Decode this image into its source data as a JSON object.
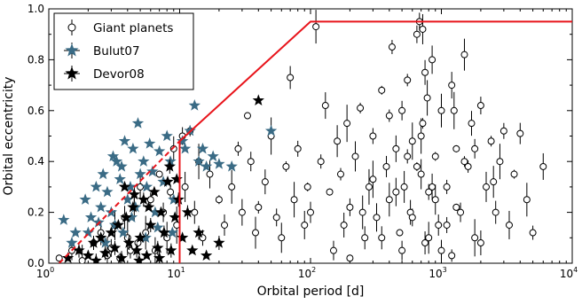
{
  "chart_data": {
    "type": "scatter",
    "title": "",
    "xlabel": "Orbital period [d]",
    "ylabel": "Orbital eccentricity",
    "xscale": "log",
    "xlim": [
      1,
      10000
    ],
    "ylim": [
      0,
      1.0
    ],
    "x_ticks": [
      {
        "value": 1,
        "base": "10",
        "exp": "0"
      },
      {
        "value": 10,
        "base": "10",
        "exp": "1"
      },
      {
        "value": 100,
        "base": "10",
        "exp": "2"
      },
      {
        "value": 1000,
        "base": "10",
        "exp": "3"
      },
      {
        "value": 10000,
        "base": "10",
        "exp": "4"
      }
    ],
    "y_ticks": [
      "0.0",
      "0.2",
      "0.4",
      "0.6",
      "0.8",
      "1.0"
    ],
    "legend_position": "top-left",
    "series": [
      {
        "name": "Giant planets",
        "marker": "open-circle",
        "color": "#000000",
        "points": [
          [
            1.2,
            0.02
          ],
          [
            1.5,
            0.05
          ],
          [
            1.8,
            0.01
          ],
          [
            2.2,
            0.08
          ],
          [
            2.5,
            0.12
          ],
          [
            2.8,
            0.03
          ],
          [
            3.0,
            0.06
          ],
          [
            3.2,
            0.15
          ],
          [
            3.5,
            0.02
          ],
          [
            3.8,
            0.18
          ],
          [
            4.0,
            0.1
          ],
          [
            4.2,
            0.05
          ],
          [
            4.5,
            0.22
          ],
          [
            4.8,
            0.08
          ],
          [
            5.0,
            0.3
          ],
          [
            5.5,
            0.12
          ],
          [
            6.0,
            0.25
          ],
          [
            6.5,
            0.05
          ],
          [
            7.0,
            0.35
          ],
          [
            7.5,
            0.2
          ],
          [
            8.0,
            0.1
          ],
          [
            8.5,
            0.28
          ],
          [
            9.0,
            0.45
          ],
          [
            9.5,
            0.15
          ],
          [
            10.5,
            0.5
          ],
          [
            11.0,
            0.3
          ],
          [
            12.0,
            0.52
          ],
          [
            13.0,
            0.2
          ],
          [
            14.0,
            0.4
          ],
          [
            15.0,
            0.1
          ],
          [
            17.0,
            0.35
          ],
          [
            20.0,
            0.25
          ],
          [
            22.0,
            0.15
          ],
          [
            25.0,
            0.3
          ],
          [
            28.0,
            0.45
          ],
          [
            30.0,
            0.2
          ],
          [
            33.0,
            0.58
          ],
          [
            35.0,
            0.4
          ],
          [
            38.0,
            0.12
          ],
          [
            40.0,
            0.22
          ],
          [
            45.0,
            0.32
          ],
          [
            50.0,
            0.5
          ],
          [
            55.0,
            0.18
          ],
          [
            60.0,
            0.1
          ],
          [
            65.0,
            0.38
          ],
          [
            70.0,
            0.73
          ],
          [
            75.0,
            0.25
          ],
          [
            80.0,
            0.45
          ],
          [
            90.0,
            0.15
          ],
          [
            95.0,
            0.3
          ],
          [
            100.0,
            0.2
          ],
          [
            110.0,
            0.93
          ],
          [
            120.0,
            0.4
          ],
          [
            130.0,
            0.62
          ],
          [
            140.0,
            0.28
          ],
          [
            150.0,
            0.05
          ],
          [
            160.0,
            0.48
          ],
          [
            170.0,
            0.35
          ],
          [
            180.0,
            0.15
          ],
          [
            190.0,
            0.55
          ],
          [
            200.0,
            0.22
          ],
          [
            220.0,
            0.42
          ],
          [
            240.0,
            0.61
          ],
          [
            260.0,
            0.1
          ],
          [
            280.0,
            0.3
          ],
          [
            300.0,
            0.5
          ],
          [
            320.0,
            0.18
          ],
          [
            350.0,
            0.68
          ],
          [
            380.0,
            0.38
          ],
          [
            400.0,
            0.25
          ],
          [
            420.0,
            0.85
          ],
          [
            450.0,
            0.45
          ],
          [
            480.0,
            0.12
          ],
          [
            500.0,
            0.6
          ],
          [
            520.0,
            0.3
          ],
          [
            550.0,
            0.72
          ],
          [
            580.0,
            0.2
          ],
          [
            600.0,
            0.48
          ],
          [
            650.0,
            0.9
          ],
          [
            700.0,
            0.35
          ],
          [
            720.0,
            0.55
          ],
          [
            750.0,
            0.08
          ],
          [
            780.0,
            0.65
          ],
          [
            800.0,
            0.28
          ],
          [
            850.0,
            0.8
          ],
          [
            900.0,
            0.42
          ],
          [
            950.0,
            0.15
          ],
          [
            1000.0,
            0.6
          ],
          [
            1100.0,
            0.3
          ],
          [
            1200.0,
            0.7
          ],
          [
            1300.0,
            0.45
          ],
          [
            1400.0,
            0.2
          ],
          [
            1500.0,
            0.82
          ],
          [
            1600.0,
            0.38
          ],
          [
            1700.0,
            0.55
          ],
          [
            1800.0,
            0.1
          ],
          [
            2000.0,
            0.62
          ],
          [
            2200.0,
            0.3
          ],
          [
            2400.0,
            0.48
          ],
          [
            2600.0,
            0.2
          ],
          [
            2800.0,
            0.4
          ],
          [
            3000.0,
            0.52
          ],
          [
            3300.0,
            0.15
          ],
          [
            3600.0,
            0.35
          ],
          [
            4000.0,
            0.51
          ],
          [
            4500.0,
            0.25
          ],
          [
            5000.0,
            0.12
          ],
          [
            6000.0,
            0.38
          ],
          [
            200.0,
            0.02
          ],
          [
            500.0,
            0.05
          ],
          [
            800.0,
            0.1
          ],
          [
            1200.0,
            0.03
          ],
          [
            2000.0,
            0.08
          ],
          [
            300.0,
            0.33
          ],
          [
            600.0,
            0.18
          ],
          [
            900.0,
            0.25
          ],
          [
            1500.0,
            0.4
          ],
          [
            350.0,
            0.1
          ],
          [
            700.0,
            0.5
          ],
          [
            1100.0,
            0.15
          ],
          [
            450.0,
            0.28
          ],
          [
            650.0,
            0.38
          ],
          [
            1000.0,
            0.05
          ],
          [
            250.0,
            0.2
          ],
          [
            550.0,
            0.42
          ],
          [
            850.0,
            0.3
          ],
          [
            1300.0,
            0.22
          ],
          [
            1800.0,
            0.45
          ],
          [
            2500.0,
            0.32
          ],
          [
            400.0,
            0.58
          ],
          [
            750.0,
            0.75
          ],
          [
            1250.0,
            0.6
          ],
          [
            680.0,
            0.95
          ],
          [
            720.0,
            0.92
          ]
        ]
      },
      {
        "name": "Bulut07",
        "marker": "star",
        "color": "#3a6b85",
        "points": [
          [
            1.3,
            0.17
          ],
          [
            1.6,
            0.12
          ],
          [
            1.9,
            0.25
          ],
          [
            2.1,
            0.18
          ],
          [
            2.3,
            0.3
          ],
          [
            2.5,
            0.22
          ],
          [
            2.6,
            0.35
          ],
          [
            2.8,
            0.28
          ],
          [
            3.0,
            0.2
          ],
          [
            3.1,
            0.42
          ],
          [
            3.3,
            0.4
          ],
          [
            3.5,
            0.33
          ],
          [
            3.6,
            0.38
          ],
          [
            3.8,
            0.48
          ],
          [
            4.0,
            0.25
          ],
          [
            4.2,
            0.3
          ],
          [
            4.4,
            0.45
          ],
          [
            4.6,
            0.22
          ],
          [
            4.8,
            0.55
          ],
          [
            5.0,
            0.35
          ],
          [
            5.3,
            0.4
          ],
          [
            5.6,
            0.3
          ],
          [
            5.9,
            0.47
          ],
          [
            6.2,
            0.36
          ],
          [
            6.5,
            0.2
          ],
          [
            7.0,
            0.44
          ],
          [
            7.5,
            0.32
          ],
          [
            8.0,
            0.5
          ],
          [
            8.5,
            0.4
          ],
          [
            9.0,
            0.25
          ],
          [
            10.5,
            0.48
          ],
          [
            11.0,
            0.45
          ],
          [
            12.0,
            0.52
          ],
          [
            13.0,
            0.62
          ],
          [
            14.0,
            0.4
          ],
          [
            15.0,
            0.45
          ],
          [
            16.0,
            0.38
          ],
          [
            18.0,
            0.42
          ],
          [
            20.0,
            0.39
          ],
          [
            25.0,
            0.38
          ],
          [
            1.5,
            0.08
          ],
          [
            2.0,
            0.12
          ],
          [
            2.4,
            0.16
          ],
          [
            2.7,
            0.08
          ],
          [
            3.2,
            0.15
          ],
          [
            3.7,
            0.12
          ],
          [
            4.3,
            0.18
          ],
          [
            5.5,
            0.1
          ],
          [
            6.8,
            0.14
          ],
          [
            8.8,
            0.12
          ],
          [
            50.0,
            0.52
          ]
        ]
      },
      {
        "name": "Devor08",
        "marker": "star",
        "color": "#000000",
        "points": [
          [
            1.4,
            0.02
          ],
          [
            1.7,
            0.05
          ],
          [
            2.0,
            0.03
          ],
          [
            2.2,
            0.08
          ],
          [
            2.5,
            0.1
          ],
          [
            2.7,
            0.04
          ],
          [
            3.0,
            0.12
          ],
          [
            3.2,
            0.06
          ],
          [
            3.4,
            0.15
          ],
          [
            3.6,
            0.02
          ],
          [
            3.9,
            0.18
          ],
          [
            4.1,
            0.08
          ],
          [
            4.4,
            0.22
          ],
          [
            4.7,
            0.05
          ],
          [
            5.0,
            0.1
          ],
          [
            5.3,
            0.25
          ],
          [
            5.6,
            0.03
          ],
          [
            6.0,
            0.15
          ],
          [
            6.4,
            0.28
          ],
          [
            6.8,
            0.06
          ],
          [
            7.2,
            0.2
          ],
          [
            7.6,
            0.12
          ],
          [
            8.1,
            0.32
          ],
          [
            8.6,
            0.05
          ],
          [
            9.2,
            0.18
          ],
          [
            9.8,
            0.25
          ],
          [
            10.5,
            0.1
          ],
          [
            11.5,
            0.2
          ],
          [
            12.5,
            0.05
          ],
          [
            14.0,
            0.12
          ],
          [
            16.0,
            0.03
          ],
          [
            20.0,
            0.08
          ],
          [
            3.8,
            0.3
          ],
          [
            4.5,
            0.27
          ],
          [
            5.8,
            0.22
          ],
          [
            8.4,
            0.38
          ],
          [
            9.5,
            0.33
          ],
          [
            2.3,
            0.01
          ],
          [
            4.9,
            0.01
          ],
          [
            7.0,
            0.02
          ],
          [
            40.0,
            0.64
          ]
        ]
      }
    ],
    "boundary": {
      "color": "#e8141b",
      "solid": [
        [
          10,
          0
        ],
        [
          10,
          0.48
        ],
        [
          100,
          0.95
        ],
        [
          10000,
          0.95
        ]
      ],
      "dashed": [
        [
          1.2,
          0
        ],
        [
          10,
          0.48
        ]
      ]
    }
  }
}
